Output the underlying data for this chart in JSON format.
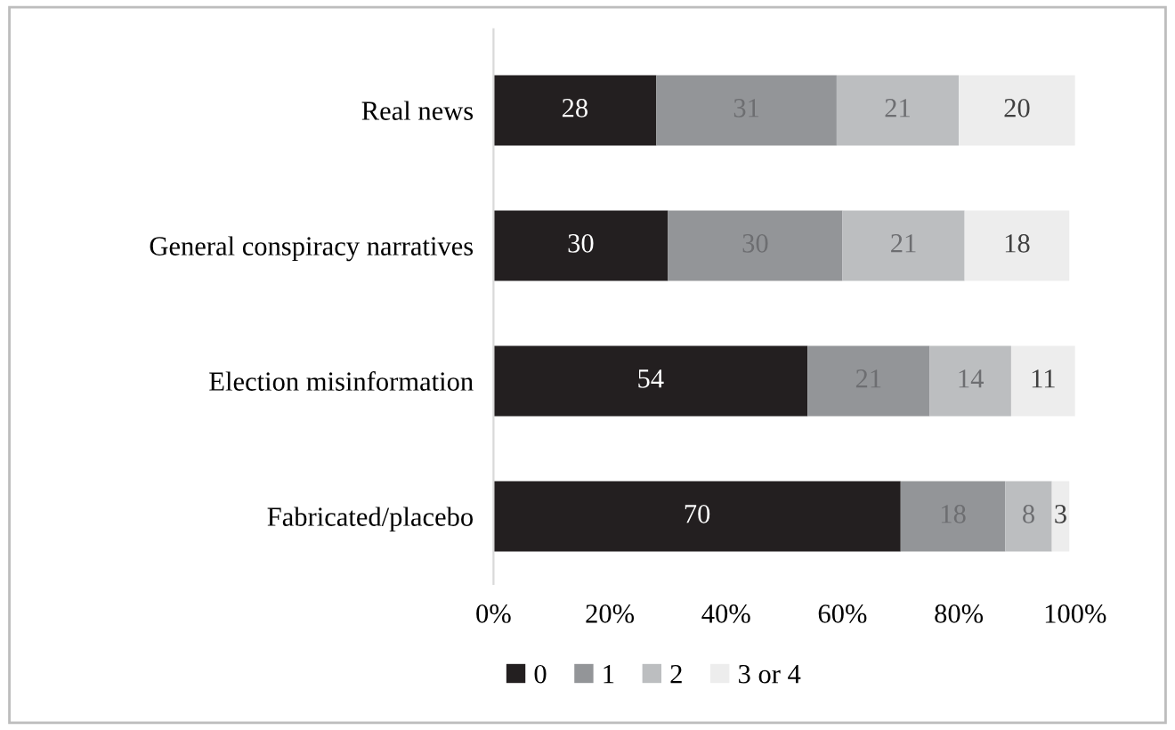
{
  "chart_data": {
    "type": "bar",
    "orientation": "horizontal",
    "stacked": true,
    "categories": [
      "Real news",
      "General conspiracy narratives",
      "Election misinformation",
      "Fabricated/placebo"
    ],
    "series": [
      {
        "name": "0",
        "color": "#231f20",
        "values": [
          28,
          30,
          54,
          70
        ]
      },
      {
        "name": "1",
        "color": "#939598",
        "values": [
          31,
          30,
          21,
          18
        ]
      },
      {
        "name": "2",
        "color": "#bcbec0",
        "values": [
          21,
          21,
          14,
          8
        ]
      },
      {
        "name": "3 or 4",
        "color": "#ededed",
        "values": [
          20,
          18,
          11,
          3
        ]
      }
    ],
    "xlim": [
      0,
      100
    ],
    "xticks": [
      {
        "value": 0,
        "label": "0%"
      },
      {
        "value": 20,
        "label": "20%"
      },
      {
        "value": 40,
        "label": "40%"
      },
      {
        "value": 60,
        "label": "60%"
      },
      {
        "value": 80,
        "label": "80%"
      },
      {
        "value": 100,
        "label": "100%"
      }
    ],
    "data_labels": true,
    "grid": false,
    "legend": "bottom"
  }
}
